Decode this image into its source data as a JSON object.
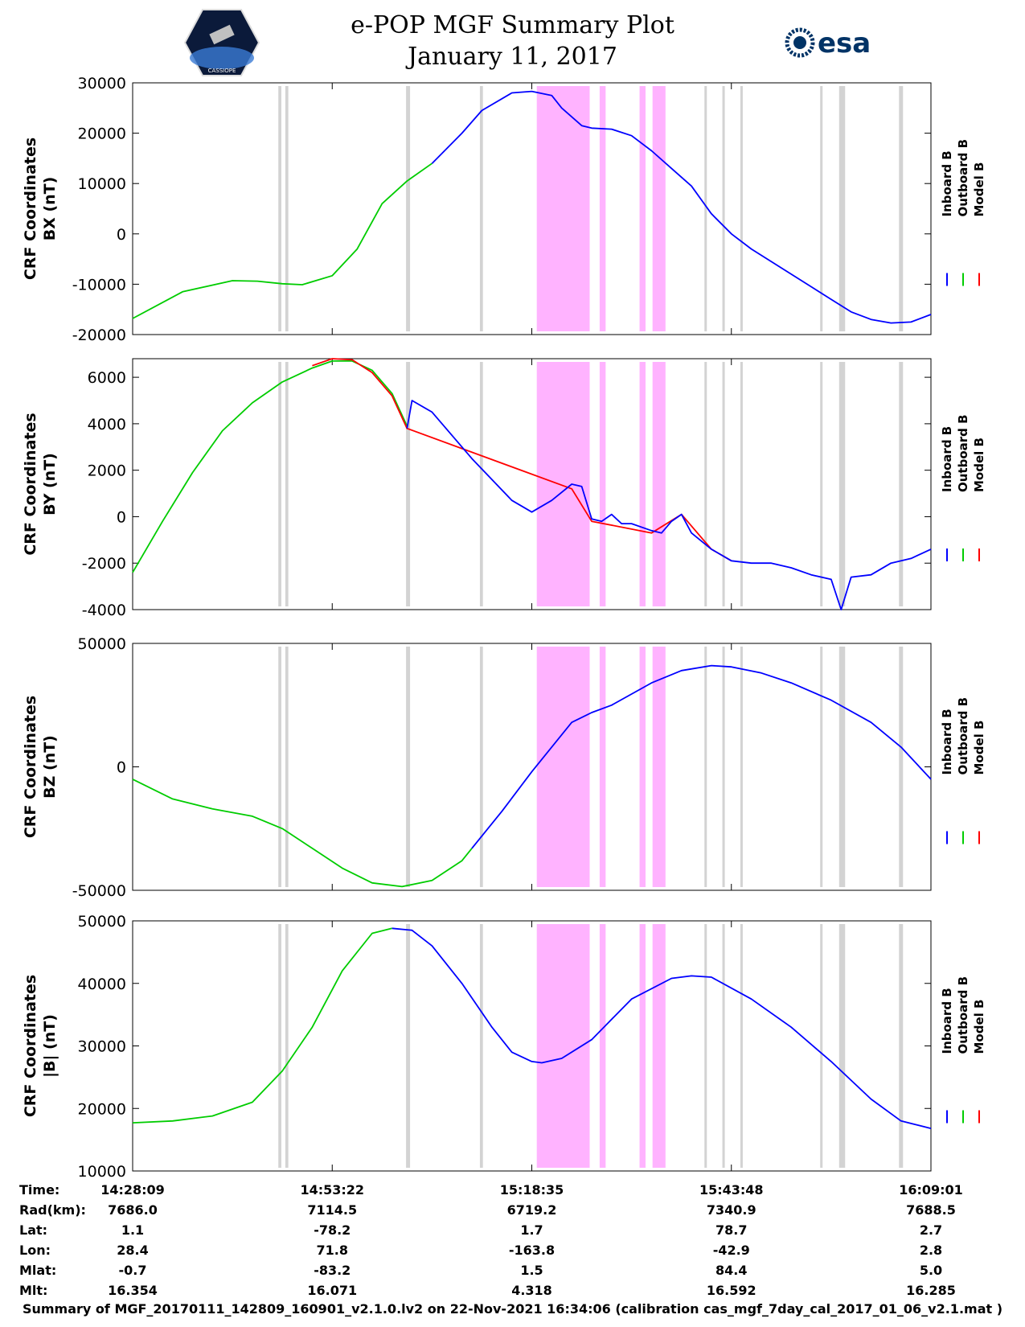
{
  "header": {
    "title_line1": "e-POP MGF Summary Plot",
    "title_line2": "January 11, 2017",
    "left_logo_text": "CASSIOPE",
    "right_logo_text": "esa"
  },
  "colors": {
    "inboard": "#0000ff",
    "outboard": "#00cc00",
    "model": "#ff0000",
    "highlight_magenta": "#ffb3ff",
    "highlight_gray": "#d3d3d3"
  },
  "chart_data": [
    {
      "type": "line",
      "title": "",
      "ylabel": "CRF Coordinates\nBX (nT)",
      "ylabel_lines": [
        "CRF Coordinates",
        "BX (nT)"
      ],
      "ylim": [
        -20000,
        30000
      ],
      "yticks": [
        -20000,
        -10000,
        0,
        10000,
        20000,
        30000
      ],
      "legend": [
        "Inboard B",
        "Outboard B",
        "Model B"
      ],
      "series": [
        {
          "name": "Outboard B",
          "color": "#00cc00",
          "x": [
            0,
            5,
            10,
            12.5,
            15,
            17,
            20,
            22.5,
            25,
            27.5,
            30
          ],
          "values": [
            -16800,
            -11500,
            -9300,
            -9400,
            -9900,
            -10100,
            -8300,
            -3000,
            6000,
            10500,
            14000
          ]
        },
        {
          "name": "Inboard B",
          "color": "#0000ff",
          "x": [
            30,
            33,
            35,
            38,
            40,
            42,
            43,
            45,
            46,
            48,
            50,
            52,
            54,
            56,
            58,
            60,
            62,
            64,
            66,
            68,
            70,
            72,
            74,
            76,
            78,
            80
          ],
          "values": [
            14000,
            20000,
            24500,
            28000,
            28300,
            27500,
            25000,
            21500,
            21000,
            20800,
            19500,
            16500,
            13000,
            9500,
            4000,
            0,
            -3000,
            -5500,
            -8000,
            -10500,
            -13000,
            -15500,
            -17000,
            -17700,
            -17500,
            -16000
          ]
        }
      ]
    },
    {
      "type": "line",
      "title": "",
      "ylabel": "CRF Coordinates\nBY (nT)",
      "ylabel_lines": [
        "CRF Coordinates",
        "BY (nT)"
      ],
      "ylim": [
        -4000,
        6800
      ],
      "yticks": [
        -4000,
        -2000,
        0,
        2000,
        4000,
        6000
      ],
      "legend": [
        "Inboard B",
        "Outboard B",
        "Model B"
      ],
      "series": [
        {
          "name": "Outboard B",
          "color": "#00cc00",
          "x": [
            0,
            3,
            6,
            9,
            12,
            15,
            18,
            20,
            22,
            24,
            26,
            27.5
          ],
          "values": [
            -2400,
            -200,
            1900,
            3700,
            4900,
            5800,
            6400,
            6700,
            6700,
            6300,
            5300,
            3900
          ]
        },
        {
          "name": "Model B",
          "color": "#ff0000",
          "x": [
            18,
            20,
            22,
            24,
            26,
            27.5,
            44,
            46,
            52,
            55,
            58,
            60
          ],
          "values": [
            6500,
            6800,
            6750,
            6200,
            5200,
            3800,
            1200,
            -200,
            -700,
            100,
            -1400,
            -1900
          ]
        },
        {
          "name": "Inboard B",
          "color": "#0000ff",
          "x": [
            27.5,
            28,
            30,
            34,
            38,
            40,
            42,
            44,
            45,
            46,
            47,
            48,
            49,
            50,
            52,
            53,
            54,
            55,
            56,
            58,
            60,
            62,
            64,
            66,
            68,
            70,
            71,
            72,
            74,
            76,
            78,
            80
          ],
          "values": [
            3800,
            5000,
            4500,
            2500,
            700,
            200,
            700,
            1400,
            1300,
            -100,
            -200,
            100,
            -300,
            -300,
            -600,
            -700,
            -200,
            100,
            -700,
            -1400,
            -1900,
            -2000,
            -2000,
            -2200,
            -2500,
            -2700,
            -4000,
            -2600,
            -2500,
            -2000,
            -1800,
            -1400
          ]
        }
      ]
    },
    {
      "type": "line",
      "title": "",
      "ylabel": "CRF Coordinates\nBZ (nT)",
      "ylabel_lines": [
        "CRF Coordinates",
        "BZ (nT)"
      ],
      "ylim": [
        -50000,
        50000
      ],
      "yticks": [
        -50000,
        0,
        50000
      ],
      "legend": [
        "Inboard B",
        "Outboard B",
        "Model B"
      ],
      "series": [
        {
          "name": "Outboard B",
          "color": "#00cc00",
          "x": [
            0,
            4,
            8,
            12,
            15,
            18,
            21,
            24,
            27,
            30,
            33,
            34
          ],
          "values": [
            -5000,
            -13000,
            -17000,
            -20000,
            -25000,
            -33000,
            -41000,
            -47000,
            -48500,
            -46000,
            -38000,
            -33000
          ]
        },
        {
          "name": "Inboard B",
          "color": "#0000ff",
          "x": [
            34,
            37,
            40,
            44,
            46,
            48,
            52,
            55,
            58,
            60,
            63,
            66,
            70,
            74,
            77,
            80
          ],
          "values": [
            -33000,
            -18000,
            -2000,
            18000,
            22000,
            25000,
            34000,
            39000,
            41000,
            40500,
            38000,
            34000,
            27000,
            18000,
            8000,
            -5000
          ]
        }
      ]
    },
    {
      "type": "line",
      "title": "",
      "ylabel": "CRF Coordinates\n|B| (nT)",
      "ylabel_lines": [
        "CRF Coordinates",
        "|B| (nT)"
      ],
      "ylim": [
        10000,
        50000
      ],
      "yticks": [
        10000,
        20000,
        30000,
        40000,
        50000
      ],
      "legend": [
        "Inboard B",
        "Outboard B",
        "Model B"
      ],
      "series": [
        {
          "name": "Outboard B",
          "color": "#00cc00",
          "x": [
            0,
            4,
            8,
            12,
            15,
            18,
            21,
            24,
            26
          ],
          "values": [
            17700,
            18000,
            18800,
            21000,
            26000,
            33000,
            42000,
            48000,
            48800
          ]
        },
        {
          "name": "Inboard B",
          "color": "#0000ff",
          "x": [
            26,
            28,
            30,
            33,
            36,
            38,
            40,
            41,
            43,
            46,
            50,
            54,
            56,
            58,
            62,
            66,
            70,
            74,
            77,
            80
          ],
          "values": [
            48800,
            48500,
            46000,
            40000,
            33000,
            29000,
            27500,
            27300,
            28000,
            31000,
            37500,
            40800,
            41200,
            41000,
            37500,
            33000,
            27500,
            21500,
            18000,
            16800
          ]
        }
      ]
    }
  ],
  "shared_axis": {
    "x_range": [
      0,
      80
    ],
    "xticks": [
      0,
      20,
      40,
      60,
      80
    ],
    "magenta_bands": [
      [
        40.5,
        45.8
      ],
      [
        46.8,
        47.4
      ],
      [
        50.8,
        51.4
      ],
      [
        52.1,
        53.4
      ]
    ],
    "gray_lines": [
      [
        14.6,
        14.9
      ],
      [
        15.3,
        15.6
      ],
      [
        27.4,
        27.8
      ],
      [
        34.8,
        35.1
      ],
      [
        57.3,
        57.5
      ],
      [
        59.1,
        59.3
      ],
      [
        60.9,
        61.1
      ],
      [
        68.9,
        69.1
      ],
      [
        70.8,
        71.4
      ],
      [
        76.8,
        77.2
      ]
    ]
  },
  "footer_table": {
    "rows": [
      {
        "label": "Time:",
        "values": [
          "14:28:09",
          "14:53:22",
          "15:18:35",
          "15:43:48",
          "16:09:01"
        ]
      },
      {
        "label": "Rad(km):",
        "values": [
          "7686.0",
          "7114.5",
          "6719.2",
          "7340.9",
          "7688.5"
        ]
      },
      {
        "label": "Lat:",
        "values": [
          "1.1",
          "-78.2",
          "1.7",
          "78.7",
          "2.7"
        ]
      },
      {
        "label": "Lon:",
        "values": [
          "28.4",
          "71.8",
          "-163.8",
          "-42.9",
          "2.8"
        ]
      },
      {
        "label": "Mlat:",
        "values": [
          "-0.7",
          "-83.2",
          "1.5",
          "84.4",
          "5.0"
        ]
      },
      {
        "label": "Mlt:",
        "values": [
          "16.354",
          "16.071",
          "4.318",
          "16.592",
          "16.285"
        ]
      }
    ]
  },
  "footer_note": "Summary of MGF_20170111_142809_160901_v2.1.0.lv2 on 22-Nov-2021 16:34:06 (calibration cas_mgf_7day_cal_2017_01_06_v2.1.mat )"
}
